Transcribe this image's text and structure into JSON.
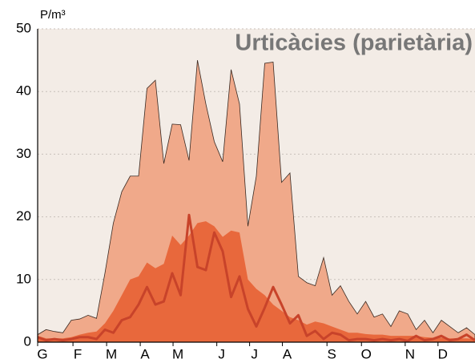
{
  "chart_data": {
    "type": "area",
    "title": "Urticàcies (parietària)",
    "ylabel": "P/m³",
    "x": [
      0,
      1,
      2,
      3,
      4,
      5,
      6,
      7,
      8,
      9,
      10,
      11,
      12,
      13,
      14,
      15,
      16,
      17,
      18,
      19,
      20,
      21,
      22,
      23,
      24,
      25,
      26,
      27,
      28,
      29,
      30,
      31,
      32,
      33,
      34,
      35,
      36,
      37,
      38,
      39,
      40,
      41,
      42,
      43,
      44,
      45,
      46,
      47,
      48,
      49,
      50,
      51,
      52
    ],
    "xlim": [
      0,
      52
    ],
    "xticks": [
      {
        "value": 0,
        "label": "G"
      },
      {
        "value": 4.2,
        "label": "F"
      },
      {
        "value": 8.2,
        "label": "M"
      },
      {
        "value": 12.2,
        "label": "A"
      },
      {
        "value": 16.1,
        "label": "M"
      },
      {
        "value": 21.3,
        "label": "J"
      },
      {
        "value": 25.2,
        "label": "J"
      },
      {
        "value": 29.1,
        "label": "A"
      },
      {
        "value": 34.4,
        "label": "S"
      },
      {
        "value": 38.5,
        "label": "O"
      },
      {
        "value": 43.7,
        "label": "N"
      },
      {
        "value": 47.6,
        "label": "D"
      }
    ],
    "ylim": [
      0,
      50
    ],
    "yticks": [
      0,
      10,
      20,
      30,
      40,
      50
    ],
    "grid": true,
    "series": [
      {
        "color": "#f0a98a",
        "style": "area",
        "values": [
          1.2,
          2,
          1.7,
          1.5,
          3.5,
          3.7,
          4.3,
          3.8,
          11,
          19,
          24,
          26.5,
          26.5,
          40.5,
          41.8,
          28.5,
          34.8,
          34.7,
          29,
          45,
          38,
          32,
          28.8,
          43.5,
          38,
          18.5,
          26.5,
          44.5,
          44.7,
          25.5,
          27,
          10.5,
          9.5,
          9,
          13.5,
          7.5,
          9,
          6.5,
          4.5,
          6.5,
          4,
          4.5,
          2.5,
          5,
          4.5,
          2,
          3.5,
          1.5,
          3.5,
          2.5,
          1.5,
          2.3,
          1.2
        ]
      },
      {
        "color": "#e8683c",
        "style": "area",
        "values": [
          1,
          0.6,
          0.6,
          0.6,
          0.8,
          1.2,
          1.5,
          1.7,
          3,
          5,
          7.5,
          10,
          10.5,
          12.7,
          11.8,
          12.5,
          17,
          15.5,
          17,
          19,
          19.3,
          18.5,
          16.8,
          17.8,
          17.5,
          10,
          8.5,
          7.5,
          6,
          5,
          4,
          3.5,
          2.8,
          3.3,
          3,
          2.5,
          2,
          1.5,
          1.5,
          1.3,
          1.2,
          1.2,
          1,
          1,
          1,
          1,
          0.8,
          0.7,
          0.7,
          0.6,
          0.6,
          0.6,
          0.5
        ]
      },
      {
        "color": "#c8432a",
        "style": "line",
        "values": [
          0.8,
          0.3,
          0.5,
          0.3,
          0.5,
          0.8,
          0.8,
          0.5,
          2,
          1.5,
          3.5,
          4,
          6,
          8.8,
          6,
          6.5,
          11,
          7.5,
          20.3,
          12,
          11.5,
          17.5,
          14.5,
          7.2,
          10.5,
          5.3,
          2.5,
          5.5,
          8.8,
          6,
          3,
          4.3,
          1,
          1.8,
          0.5,
          1.5,
          1.2,
          0.3,
          0.5,
          0.5,
          0.3,
          0.5,
          0.3,
          0.5,
          0.2,
          1,
          0.3,
          0.5,
          1,
          0.3,
          0.5,
          1.2,
          0.3
        ]
      }
    ]
  }
}
